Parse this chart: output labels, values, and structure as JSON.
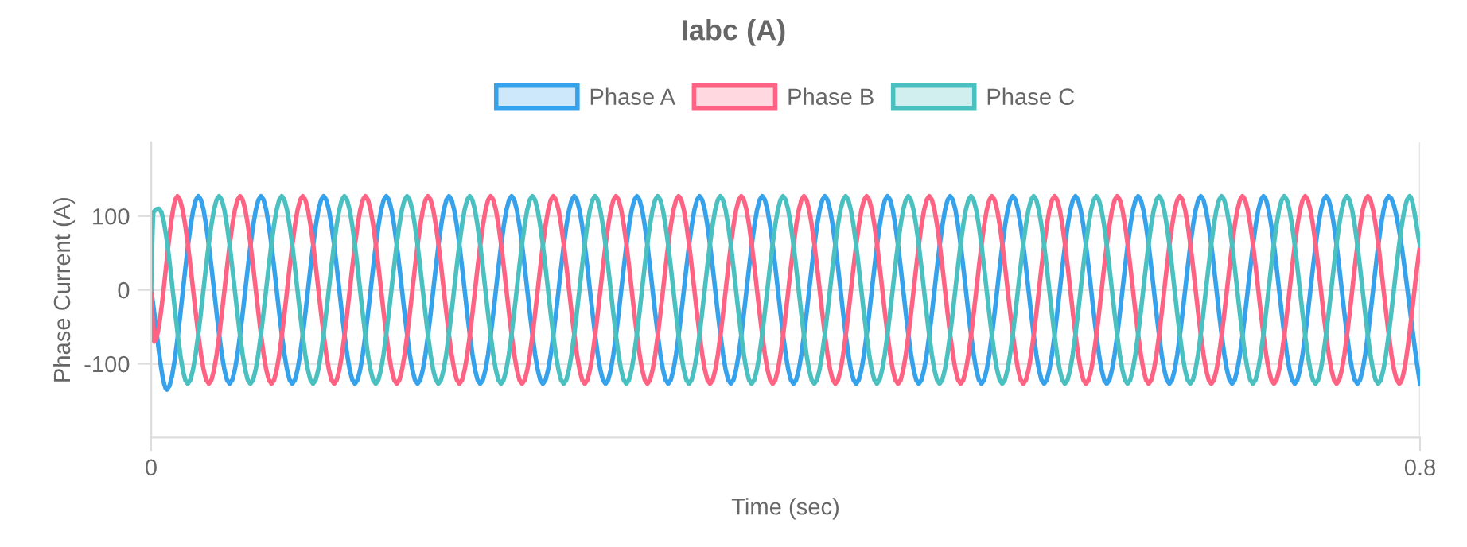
{
  "chart_data": {
    "type": "line",
    "title": "Iabc (A)",
    "xlabel": "Time (sec)",
    "ylabel": "Phase Current (A)",
    "xlim": [
      0,
      0.8
    ],
    "xticks": [
      0,
      0.8
    ],
    "ylim": [
      -200,
      200
    ],
    "yticks": [
      -100,
      0,
      100
    ],
    "grid": true,
    "legend": "top",
    "marker": "none",
    "line_style": "solid",
    "series": [
      {
        "name": "Phase A",
        "color": "#36a2eb",
        "x": [
          0,
          0.01,
          0.0298,
          0.0495,
          0.0693,
          0.089,
          0.1088,
          0.1285,
          0.1483,
          0.168,
          0.1878,
          0.2075,
          0.2273,
          0.247,
          0.2668,
          0.2865,
          0.3063,
          0.326,
          0.3458,
          0.3655,
          0.3853,
          0.405,
          0.4248,
          0.4445,
          0.4643,
          0.484,
          0.5038,
          0.5235,
          0.5433,
          0.563,
          0.5828,
          0.6025,
          0.6223,
          0.642,
          0.6618,
          0.6815,
          0.7013,
          0.721,
          0.7408,
          0.7605,
          0.7803,
          0.8
        ],
        "values": [
          0,
          -135,
          127,
          -127,
          127,
          -127,
          127,
          -127,
          127,
          -127,
          127,
          -127,
          127,
          -127,
          127,
          -127,
          127,
          -127,
          127,
          -127,
          127,
          -127,
          127,
          -127,
          127,
          -127,
          127,
          -127,
          127,
          -127,
          127,
          -127,
          127,
          -127,
          127,
          -127,
          127,
          -127,
          127,
          -127,
          127,
          -127
        ]
      },
      {
        "name": "Phase B",
        "color": "#ff6384",
        "x": [
          0,
          0.002,
          0.0166,
          0.0364,
          0.0561,
          0.0759,
          0.0956,
          0.1154,
          0.1351,
          0.1549,
          0.1746,
          0.1944,
          0.2141,
          0.2339,
          0.2536,
          0.2734,
          0.2931,
          0.3129,
          0.3326,
          0.3524,
          0.3721,
          0.3919,
          0.4116,
          0.4314,
          0.4511,
          0.4709,
          0.4906,
          0.5104,
          0.5301,
          0.5499,
          0.5696,
          0.5894,
          0.6091,
          0.6289,
          0.6486,
          0.6684,
          0.6881,
          0.7079,
          0.7276,
          0.7474,
          0.7671,
          0.7869,
          0.8
        ],
        "values": [
          0,
          -70,
          127,
          -127,
          127,
          -127,
          127,
          -127,
          127,
          -127,
          127,
          -127,
          127,
          -127,
          127,
          -127,
          127,
          -127,
          127,
          -127,
          127,
          -127,
          127,
          -127,
          127,
          -127,
          127,
          -127,
          127,
          -127,
          127,
          -127,
          127,
          -127,
          127,
          -127,
          127,
          -127,
          127,
          -127,
          127,
          -127,
          60
        ]
      },
      {
        "name": "Phase C",
        "color": "#4bc0c0",
        "x": [
          0,
          0.0015,
          0.005,
          0.0231,
          0.0429,
          0.0626,
          0.0824,
          0.1021,
          0.1219,
          0.1416,
          0.1614,
          0.1811,
          0.2009,
          0.2206,
          0.2404,
          0.2601,
          0.2799,
          0.2996,
          0.3194,
          0.3391,
          0.3589,
          0.3786,
          0.3984,
          0.4181,
          0.4379,
          0.4576,
          0.4774,
          0.4971,
          0.5169,
          0.5366,
          0.5564,
          0.5761,
          0.5959,
          0.6156,
          0.6354,
          0.6551,
          0.6749,
          0.6946,
          0.7144,
          0.7341,
          0.7539,
          0.7736,
          0.7934,
          0.8
        ],
        "values": [
          0,
          105,
          110,
          -127,
          127,
          -127,
          127,
          -127,
          127,
          -127,
          127,
          -127,
          127,
          -127,
          127,
          -127,
          127,
          -127,
          127,
          -127,
          127,
          -127,
          127,
          -127,
          127,
          -127,
          127,
          -127,
          127,
          -127,
          127,
          -127,
          127,
          -127,
          127,
          -127,
          127,
          -127,
          127,
          -127,
          127,
          -127,
          127,
          60
        ]
      }
    ]
  }
}
